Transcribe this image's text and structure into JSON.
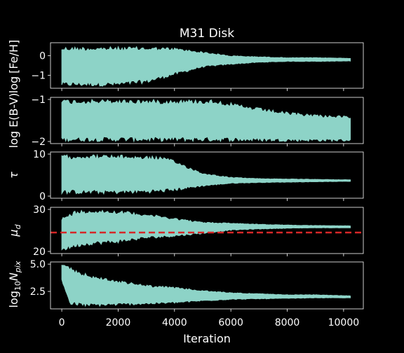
{
  "chart_data": {
    "type": "line",
    "title": "M31 Disk",
    "xlabel": "Iteration",
    "xlim": [
      -400,
      10700
    ],
    "xticks": [
      0,
      2000,
      4000,
      6000,
      8000,
      10000
    ],
    "xtick_labels": [
      "0",
      "2000",
      "4000",
      "6000",
      "8000",
      "10000"
    ],
    "n_iterations": 10240,
    "trace_color": "#8dd3c7",
    "background": "#000000",
    "panels": [
      {
        "ylabel": "log [Fe/H]",
        "ylabel_html": "log [Fe/H]",
        "ylim": [
          -1.65,
          0.65
        ],
        "yticks": [
          0,
          -1
        ],
        "ytick_labels": [
          "0",
          "−1"
        ],
        "envelope": [
          [
            0,
            -1.55,
            0.45
          ],
          [
            1000,
            -1.55,
            0.45
          ],
          [
            2000,
            -1.55,
            0.45
          ],
          [
            3000,
            -1.4,
            0.45
          ],
          [
            4000,
            -1.0,
            0.4
          ],
          [
            5000,
            -0.6,
            0.2
          ],
          [
            6000,
            -0.45,
            0.0
          ],
          [
            7000,
            -0.35,
            -0.05
          ],
          [
            8000,
            -0.3,
            -0.1
          ],
          [
            9000,
            -0.3,
            -0.1
          ],
          [
            10240,
            -0.28,
            -0.13
          ]
        ]
      },
      {
        "ylabel": "log E(B-V)",
        "ylim": [
          -2.05,
          -0.95
        ],
        "yticks": [
          -1,
          -2
        ],
        "ytick_labels": [
          "−1",
          "−2"
        ],
        "envelope": [
          [
            0,
            -2.0,
            -1.0
          ],
          [
            2000,
            -2.0,
            -1.0
          ],
          [
            4000,
            -2.0,
            -1.0
          ],
          [
            5500,
            -2.0,
            -1.0
          ],
          [
            6500,
            -2.0,
            -1.15
          ],
          [
            8000,
            -2.0,
            -1.3
          ],
          [
            9000,
            -2.0,
            -1.35
          ],
          [
            10240,
            -2.0,
            -1.4
          ]
        ]
      },
      {
        "ylabel": "τ",
        "ylim": [
          -0.5,
          10.5
        ],
        "yticks": [
          10,
          0
        ],
        "ytick_labels": [
          "10",
          "0"
        ],
        "envelope": [
          [
            0,
            0.5,
            9.8
          ],
          [
            1000,
            0.5,
            9.9
          ],
          [
            2000,
            0.5,
            9.8
          ],
          [
            3500,
            0.8,
            9.5
          ],
          [
            4000,
            1.2,
            8.5
          ],
          [
            5000,
            2.3,
            5.5
          ],
          [
            6000,
            3.0,
            4.5
          ],
          [
            7000,
            3.2,
            4.2
          ],
          [
            8000,
            3.3,
            4.1
          ],
          [
            9000,
            3.4,
            4.0
          ],
          [
            10240,
            3.5,
            3.9
          ]
        ]
      },
      {
        "ylabel": "μ_d",
        "ylim": [
          19.5,
          30.5
        ],
        "yticks": [
          30,
          20
        ],
        "ytick_labels": [
          "30",
          "20"
        ],
        "reference_line": 24.5,
        "reference_color": "#d62728",
        "envelope": [
          [
            0,
            20.0,
            28.0
          ],
          [
            500,
            21.0,
            29.8
          ],
          [
            1000,
            21.5,
            30.0
          ],
          [
            2000,
            22.0,
            29.8
          ],
          [
            3000,
            23.0,
            29.0
          ],
          [
            4000,
            23.5,
            28.0
          ],
          [
            5000,
            24.2,
            27.0
          ],
          [
            6000,
            25.0,
            26.8
          ],
          [
            7000,
            25.3,
            26.5
          ],
          [
            8000,
            25.5,
            26.3
          ],
          [
            9000,
            25.6,
            26.2
          ],
          [
            10240,
            25.6,
            26.1
          ]
        ]
      },
      {
        "ylabel": "log10 N_pix",
        "ylim": [
          0.9,
          5.2
        ],
        "yticks": [
          5.0,
          2.5
        ],
        "ytick_labels": [
          "5.0",
          "2.5"
        ],
        "envelope": [
          [
            0,
            3.5,
            5.0
          ],
          [
            300,
            1.2,
            4.7
          ],
          [
            1000,
            1.1,
            4.0
          ],
          [
            2000,
            1.2,
            3.5
          ],
          [
            3000,
            1.3,
            3.1
          ],
          [
            4000,
            1.4,
            2.9
          ],
          [
            5000,
            1.6,
            2.6
          ],
          [
            6000,
            1.75,
            2.4
          ],
          [
            7000,
            1.8,
            2.3
          ],
          [
            8000,
            1.85,
            2.2
          ],
          [
            9000,
            1.9,
            2.2
          ],
          [
            10240,
            1.9,
            2.1
          ]
        ]
      }
    ]
  }
}
